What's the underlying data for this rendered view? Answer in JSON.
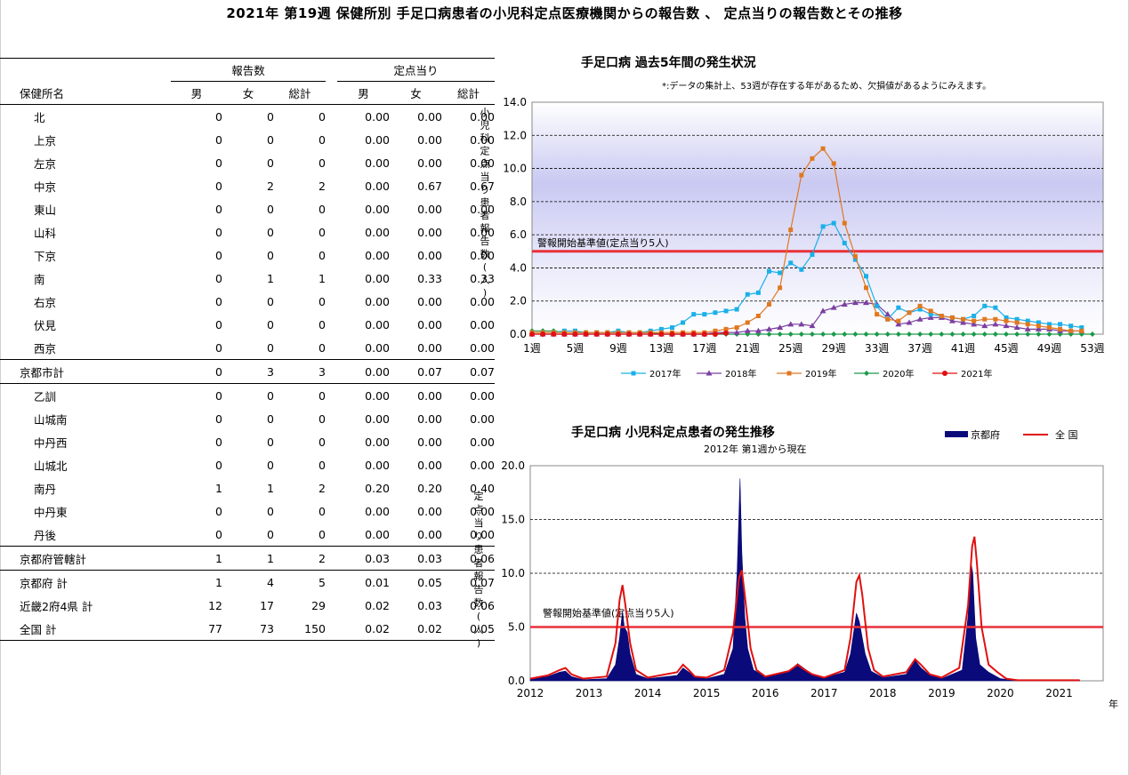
{
  "title": "2021年 第19週 保健所別 手足口病患者の小児科定点医療機関からの報告数 、 定点当りの報告数とその推移",
  "table": {
    "header_reports": "報告数",
    "header_per_sentinel": "定点当り",
    "header_name": "保健所名",
    "subheaders": [
      "男",
      "女",
      "総計",
      "男",
      "女",
      "総計"
    ],
    "rows": [
      {
        "name": "北",
        "values": [
          "0",
          "0",
          "0",
          "0.00",
          "0.00",
          "0.00"
        ]
      },
      {
        "name": "上京",
        "values": [
          "0",
          "0",
          "0",
          "0.00",
          "0.00",
          "0.00"
        ]
      },
      {
        "name": "左京",
        "values": [
          "0",
          "0",
          "0",
          "0.00",
          "0.00",
          "0.00"
        ]
      },
      {
        "name": "中京",
        "values": [
          "0",
          "2",
          "2",
          "0.00",
          "0.67",
          "0.67"
        ]
      },
      {
        "name": "東山",
        "values": [
          "0",
          "0",
          "0",
          "0.00",
          "0.00",
          "0.00"
        ]
      },
      {
        "name": "山科",
        "values": [
          "0",
          "0",
          "0",
          "0.00",
          "0.00",
          "0.00"
        ]
      },
      {
        "name": "下京",
        "values": [
          "0",
          "0",
          "0",
          "0.00",
          "0.00",
          "0.00"
        ]
      },
      {
        "name": "南",
        "values": [
          "0",
          "1",
          "1",
          "0.00",
          "0.33",
          "0.33"
        ]
      },
      {
        "name": "右京",
        "values": [
          "0",
          "0",
          "0",
          "0.00",
          "0.00",
          "0.00"
        ]
      },
      {
        "name": "伏見",
        "values": [
          "0",
          "0",
          "0",
          "0.00",
          "0.00",
          "0.00"
        ]
      },
      {
        "name": "西京",
        "values": [
          "0",
          "0",
          "0",
          "0.00",
          "0.00",
          "0.00"
        ]
      },
      {
        "name": "京都市計",
        "values": [
          "0",
          "3",
          "3",
          "0.00",
          "0.07",
          "0.07"
        ]
      },
      {
        "name": "乙訓",
        "values": [
          "0",
          "0",
          "0",
          "0.00",
          "0.00",
          "0.00"
        ]
      },
      {
        "name": "山城南",
        "values": [
          "0",
          "0",
          "0",
          "0.00",
          "0.00",
          "0.00"
        ]
      },
      {
        "name": "中丹西",
        "values": [
          "0",
          "0",
          "0",
          "0.00",
          "0.00",
          "0.00"
        ]
      },
      {
        "name": "山城北",
        "values": [
          "0",
          "0",
          "0",
          "0.00",
          "0.00",
          "0.00"
        ]
      },
      {
        "name": "南丹",
        "values": [
          "1",
          "1",
          "2",
          "0.20",
          "0.20",
          "0.40"
        ]
      },
      {
        "name": "中丹東",
        "values": [
          "0",
          "0",
          "0",
          "0.00",
          "0.00",
          "0.00"
        ]
      },
      {
        "name": "丹後",
        "values": [
          "0",
          "0",
          "0",
          "0.00",
          "0.00",
          "0.00"
        ]
      },
      {
        "name": "京都府管轄計",
        "values": [
          "1",
          "1",
          "2",
          "0.03",
          "0.03",
          "0.06"
        ]
      },
      {
        "name": "京都府 計",
        "values": [
          "1",
          "4",
          "5",
          "0.01",
          "0.05",
          "0.07"
        ]
      },
      {
        "name": "近畿2府4県 計",
        "values": [
          "12",
          "17",
          "29",
          "0.02",
          "0.03",
          "0.06"
        ]
      },
      {
        "name": "全国 計",
        "values": [
          "77",
          "73",
          "150",
          "0.02",
          "0.02",
          "0.05"
        ]
      }
    ]
  },
  "chart_data": [
    {
      "type": "line",
      "title": "手足口病 過去5年間の発生状況",
      "note": "*:データの集計上、53週が存在する年があるため、欠損値があるようにみえます。",
      "ylabel": "小児科定点当り患者報告数(人)",
      "ylim": [
        0,
        14
      ],
      "yticks": [
        "0.0",
        "2.0",
        "4.0",
        "6.0",
        "8.0",
        "10.0",
        "12.0",
        "14.0"
      ],
      "xticks": [
        "1週",
        "5週",
        "9週",
        "13週",
        "17週",
        "21週",
        "25週",
        "29週",
        "33週",
        "37週",
        "41週",
        "45週",
        "49週",
        "53週"
      ],
      "grid": true,
      "legend_position": "bottom",
      "threshold": {
        "label": "警報開始基準値(定点当り5人)",
        "value": 5,
        "color": "#e8303a"
      },
      "x": [
        1,
        2,
        3,
        4,
        5,
        6,
        7,
        8,
        9,
        10,
        11,
        12,
        13,
        14,
        15,
        16,
        17,
        18,
        19,
        20,
        21,
        22,
        23,
        24,
        25,
        26,
        27,
        28,
        29,
        30,
        31,
        32,
        33,
        34,
        35,
        36,
        37,
        38,
        39,
        40,
        41,
        42,
        43,
        44,
        45,
        46,
        47,
        48,
        49,
        50,
        51,
        52,
        53
      ],
      "series": [
        {
          "name": "2017年",
          "color": "#1ab0e8",
          "marker": "square",
          "values": [
            0.1,
            0.1,
            0.1,
            0.2,
            0.2,
            0.1,
            0.1,
            0.1,
            0.2,
            0.1,
            0.1,
            0.2,
            0.3,
            0.4,
            0.7,
            1.2,
            1.2,
            1.3,
            1.4,
            1.5,
            2.4,
            2.5,
            3.8,
            3.7,
            4.3,
            3.9,
            4.8,
            6.5,
            6.7,
            5.5,
            4.5,
            3.5,
            1.7,
            0.9,
            1.6,
            1.3,
            1.5,
            1.2,
            1.1,
            1.0,
            0.9,
            1.1,
            1.7,
            1.6,
            1.0,
            0.9,
            0.8,
            0.7,
            0.6,
            0.6,
            0.5,
            0.4,
            null
          ]
        },
        {
          "name": "2018年",
          "color": "#7b3fa0",
          "marker": "triangle",
          "values": [
            0.0,
            0.0,
            0.0,
            0.0,
            0.0,
            0.0,
            0.0,
            0.0,
            0.0,
            0.0,
            0.0,
            0.0,
            0.0,
            0.0,
            0.0,
            0.0,
            0.0,
            0.1,
            0.1,
            0.1,
            0.2,
            0.2,
            0.3,
            0.4,
            0.6,
            0.6,
            0.5,
            1.4,
            1.6,
            1.8,
            1.9,
            1.9,
            1.8,
            1.2,
            0.6,
            0.7,
            0.9,
            1.0,
            1.0,
            0.8,
            0.7,
            0.6,
            0.5,
            0.6,
            0.5,
            0.4,
            0.3,
            0.3,
            0.3,
            0.2,
            0.2,
            0.2,
            null
          ]
        },
        {
          "name": "2019年",
          "color": "#e07820",
          "marker": "square",
          "values": [
            0.1,
            0.1,
            0.1,
            0.1,
            0.1,
            0.1,
            0.1,
            0.1,
            0.1,
            0.1,
            0.1,
            0.1,
            0.1,
            0.1,
            0.1,
            0.1,
            0.1,
            0.2,
            0.3,
            0.4,
            0.7,
            1.1,
            1.8,
            2.8,
            6.3,
            9.6,
            10.6,
            11.2,
            10.3,
            6.7,
            4.7,
            2.8,
            1.2,
            0.9,
            0.8,
            1.3,
            1.7,
            1.4,
            1.1,
            1.0,
            0.9,
            0.8,
            0.9,
            0.9,
            0.8,
            0.7,
            0.6,
            0.5,
            0.4,
            0.3,
            0.2,
            0.2,
            null
          ]
        },
        {
          "name": "2020年",
          "color": "#1a9a4a",
          "marker": "diamond",
          "values": [
            0.2,
            0.2,
            0.2,
            0.1,
            0.1,
            0.1,
            0.1,
            0.1,
            0.1,
            0.1,
            0.1,
            0.1,
            0.0,
            0.0,
            0.0,
            0.0,
            0.0,
            0.0,
            0.0,
            0.0,
            0.0,
            0.0,
            0.0,
            0.0,
            0.0,
            0.0,
            0.0,
            0.0,
            0.0,
            0.0,
            0.0,
            0.0,
            0.0,
            0.0,
            0.0,
            0.0,
            0.0,
            0.0,
            0.0,
            0.0,
            0.0,
            0.0,
            0.0,
            0.0,
            0.0,
            0.0,
            0.0,
            0.0,
            0.0,
            0.0,
            0.0,
            0.0,
            0.0
          ]
        },
        {
          "name": "2021年",
          "color": "#e01010",
          "marker": "circle",
          "values": [
            0.0,
            0.0,
            0.0,
            0.0,
            0.0,
            0.0,
            0.0,
            0.0,
            0.0,
            0.0,
            0.0,
            0.0,
            0.0,
            0.0,
            0.0,
            0.0,
            0.0,
            0.0,
            0.07,
            null,
            null,
            null,
            null,
            null,
            null,
            null,
            null,
            null,
            null,
            null,
            null,
            null,
            null,
            null,
            null,
            null,
            null,
            null,
            null,
            null,
            null,
            null,
            null,
            null,
            null,
            null,
            null,
            null,
            null,
            null,
            null,
            null,
            null
          ]
        }
      ]
    },
    {
      "type": "area",
      "title": "手足口病 小児科定点患者の発生推移",
      "subtitle": "2012年 第1週から現在",
      "ylabel": "定点当り患者報告数(人)",
      "xlabel": "年",
      "ylim": [
        0,
        20
      ],
      "yticks": [
        "0.0",
        "5.0",
        "10.0",
        "15.0",
        "20.0"
      ],
      "xticks": [
        "2012",
        "2013",
        "2014",
        "2015",
        "2016",
        "2017",
        "2018",
        "2019",
        "2020",
        "2021"
      ],
      "grid": true,
      "legend_position": "top-right",
      "threshold": {
        "label": "警報開始基準値(定点当り5人)",
        "value": 5,
        "color": "#e8303a"
      },
      "series": [
        {
          "name": "京都府",
          "color": "#0a0a7a",
          "type": "area",
          "points": [
            [
              2012.0,
              0.2
            ],
            [
              2012.3,
              0.4
            ],
            [
              2012.5,
              0.8
            ],
            [
              2012.6,
              0.9
            ],
            [
              2012.7,
              0.4
            ],
            [
              2012.9,
              0.1
            ],
            [
              2013.3,
              0.2
            ],
            [
              2013.45,
              1.5
            ],
            [
              2013.52,
              4.0
            ],
            [
              2013.57,
              6.5
            ],
            [
              2013.6,
              5.0
            ],
            [
              2013.65,
              4.5
            ],
            [
              2013.7,
              2.5
            ],
            [
              2013.8,
              0.6
            ],
            [
              2014.0,
              0.2
            ],
            [
              2014.5,
              0.5
            ],
            [
              2014.6,
              1.2
            ],
            [
              2014.7,
              0.8
            ],
            [
              2014.8,
              0.4
            ],
            [
              2015.0,
              0.2
            ],
            [
              2015.3,
              0.6
            ],
            [
              2015.45,
              3.0
            ],
            [
              2015.52,
              10.0
            ],
            [
              2015.57,
              18.8
            ],
            [
              2015.6,
              12.0
            ],
            [
              2015.65,
              6.0
            ],
            [
              2015.7,
              3.0
            ],
            [
              2015.8,
              1.0
            ],
            [
              2016.0,
              0.4
            ],
            [
              2016.4,
              0.8
            ],
            [
              2016.55,
              1.6
            ],
            [
              2016.65,
              1.2
            ],
            [
              2016.8,
              0.6
            ],
            [
              2017.0,
              0.3
            ],
            [
              2017.35,
              0.8
            ],
            [
              2017.45,
              2.5
            ],
            [
              2017.55,
              6.3
            ],
            [
              2017.6,
              5.5
            ],
            [
              2017.7,
              2.5
            ],
            [
              2017.8,
              0.9
            ],
            [
              2018.0,
              0.3
            ],
            [
              2018.4,
              0.6
            ],
            [
              2018.55,
              1.9
            ],
            [
              2018.65,
              1.2
            ],
            [
              2018.8,
              0.5
            ],
            [
              2019.0,
              0.2
            ],
            [
              2019.35,
              1.0
            ],
            [
              2019.45,
              6.0
            ],
            [
              2019.5,
              11.0
            ],
            [
              2019.53,
              10.0
            ],
            [
              2019.58,
              4.0
            ],
            [
              2019.65,
              1.5
            ],
            [
              2019.8,
              0.8
            ],
            [
              2020.0,
              0.2
            ],
            [
              2020.3,
              0.0
            ],
            [
              2021.0,
              0.0
            ],
            [
              2021.35,
              0.05
            ]
          ]
        },
        {
          "name": "全 国",
          "color": "#e01010",
          "type": "line",
          "points": [
            [
              2012.0,
              0.2
            ],
            [
              2012.3,
              0.5
            ],
            [
              2012.5,
              1.0
            ],
            [
              2012.6,
              1.2
            ],
            [
              2012.7,
              0.6
            ],
            [
              2012.9,
              0.2
            ],
            [
              2013.3,
              0.4
            ],
            [
              2013.45,
              3.5
            ],
            [
              2013.52,
              7.5
            ],
            [
              2013.57,
              8.9
            ],
            [
              2013.62,
              7.0
            ],
            [
              2013.7,
              3.5
            ],
            [
              2013.8,
              1.0
            ],
            [
              2014.0,
              0.3
            ],
            [
              2014.5,
              0.8
            ],
            [
              2014.6,
              1.5
            ],
            [
              2014.7,
              1.0
            ],
            [
              2014.8,
              0.4
            ],
            [
              2015.0,
              0.3
            ],
            [
              2015.3,
              1.0
            ],
            [
              2015.45,
              4.5
            ],
            [
              2015.55,
              9.5
            ],
            [
              2015.6,
              10.3
            ],
            [
              2015.65,
              8.0
            ],
            [
              2015.75,
              3.0
            ],
            [
              2015.85,
              1.0
            ],
            [
              2016.0,
              0.4
            ],
            [
              2016.4,
              0.9
            ],
            [
              2016.55,
              1.5
            ],
            [
              2016.65,
              1.1
            ],
            [
              2016.8,
              0.6
            ],
            [
              2017.0,
              0.3
            ],
            [
              2017.35,
              1.0
            ],
            [
              2017.45,
              4.0
            ],
            [
              2017.55,
              9.2
            ],
            [
              2017.6,
              9.8
            ],
            [
              2017.65,
              8.0
            ],
            [
              2017.75,
              3.0
            ],
            [
              2017.85,
              1.0
            ],
            [
              2018.0,
              0.4
            ],
            [
              2018.4,
              0.8
            ],
            [
              2018.55,
              2.0
            ],
            [
              2018.65,
              1.5
            ],
            [
              2018.8,
              0.6
            ],
            [
              2019.0,
              0.3
            ],
            [
              2019.3,
              1.2
            ],
            [
              2019.45,
              7.0
            ],
            [
              2019.52,
              12.5
            ],
            [
              2019.56,
              13.4
            ],
            [
              2019.6,
              11.0
            ],
            [
              2019.68,
              5.0
            ],
            [
              2019.8,
              1.5
            ],
            [
              2019.95,
              0.8
            ],
            [
              2020.1,
              0.2
            ],
            [
              2020.3,
              0.05
            ],
            [
              2021.0,
              0.05
            ],
            [
              2021.35,
              0.05
            ]
          ]
        }
      ]
    }
  ]
}
